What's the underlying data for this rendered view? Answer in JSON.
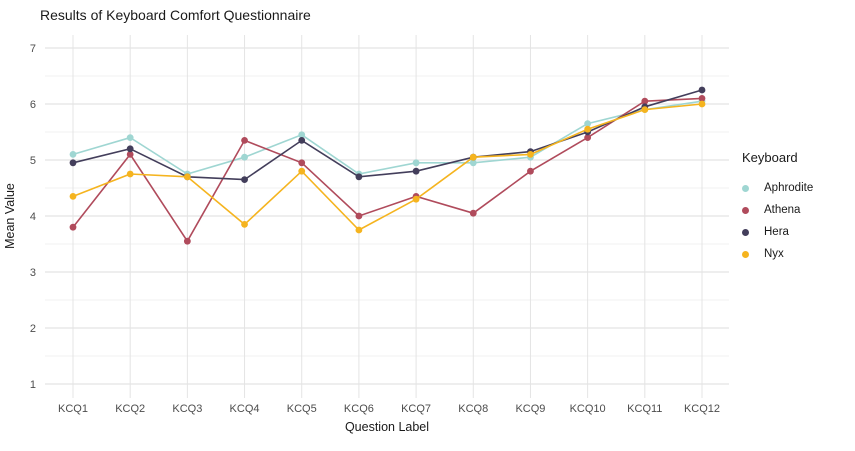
{
  "chart_data": {
    "type": "line",
    "title": "Results of Keyboard Comfort Questionnaire",
    "xlabel": "Question Label",
    "ylabel": "Mean Value",
    "categories": [
      "KCQ1",
      "KCQ2",
      "KCQ3",
      "KCQ4",
      "KCQ5",
      "KCQ6",
      "KCQ7",
      "KCQ8",
      "KCQ9",
      "KCQ10",
      "KCQ11",
      "KCQ12"
    ],
    "ylim": [
      1,
      7
    ],
    "y_ticks": [
      1,
      2,
      3,
      4,
      5,
      6,
      7
    ],
    "y_minor_step": 0.5,
    "grid": true,
    "legend_position": "right",
    "legend_title": "Keyboard",
    "series": [
      {
        "name": "Aphrodite",
        "color": "#9FD6D2",
        "values": [
          5.1,
          5.4,
          4.75,
          5.05,
          5.45,
          4.75,
          4.95,
          4.95,
          5.05,
          5.65,
          5.9,
          6.05
        ]
      },
      {
        "name": "Athena",
        "color": "#B04B5C",
        "values": [
          3.8,
          5.1,
          3.55,
          5.35,
          4.95,
          4.0,
          4.35,
          4.05,
          4.8,
          5.4,
          6.05,
          6.1
        ]
      },
      {
        "name": "Hera",
        "color": "#433E5B",
        "values": [
          4.95,
          5.2,
          4.7,
          4.65,
          5.35,
          4.7,
          4.8,
          5.05,
          5.15,
          5.5,
          5.95,
          6.25
        ]
      },
      {
        "name": "Nyx",
        "color": "#F5B41F",
        "values": [
          4.35,
          4.75,
          4.7,
          3.85,
          4.8,
          3.75,
          4.3,
          5.05,
          5.1,
          5.55,
          5.9,
          6.0
        ]
      }
    ],
    "colors": {
      "background": "#FFFFFF",
      "grid_major": "#E4E4E4",
      "grid_minor": "#F1F1F1",
      "tick_text": "#4D4D4D",
      "title_text": "#1A1A1A"
    }
  }
}
